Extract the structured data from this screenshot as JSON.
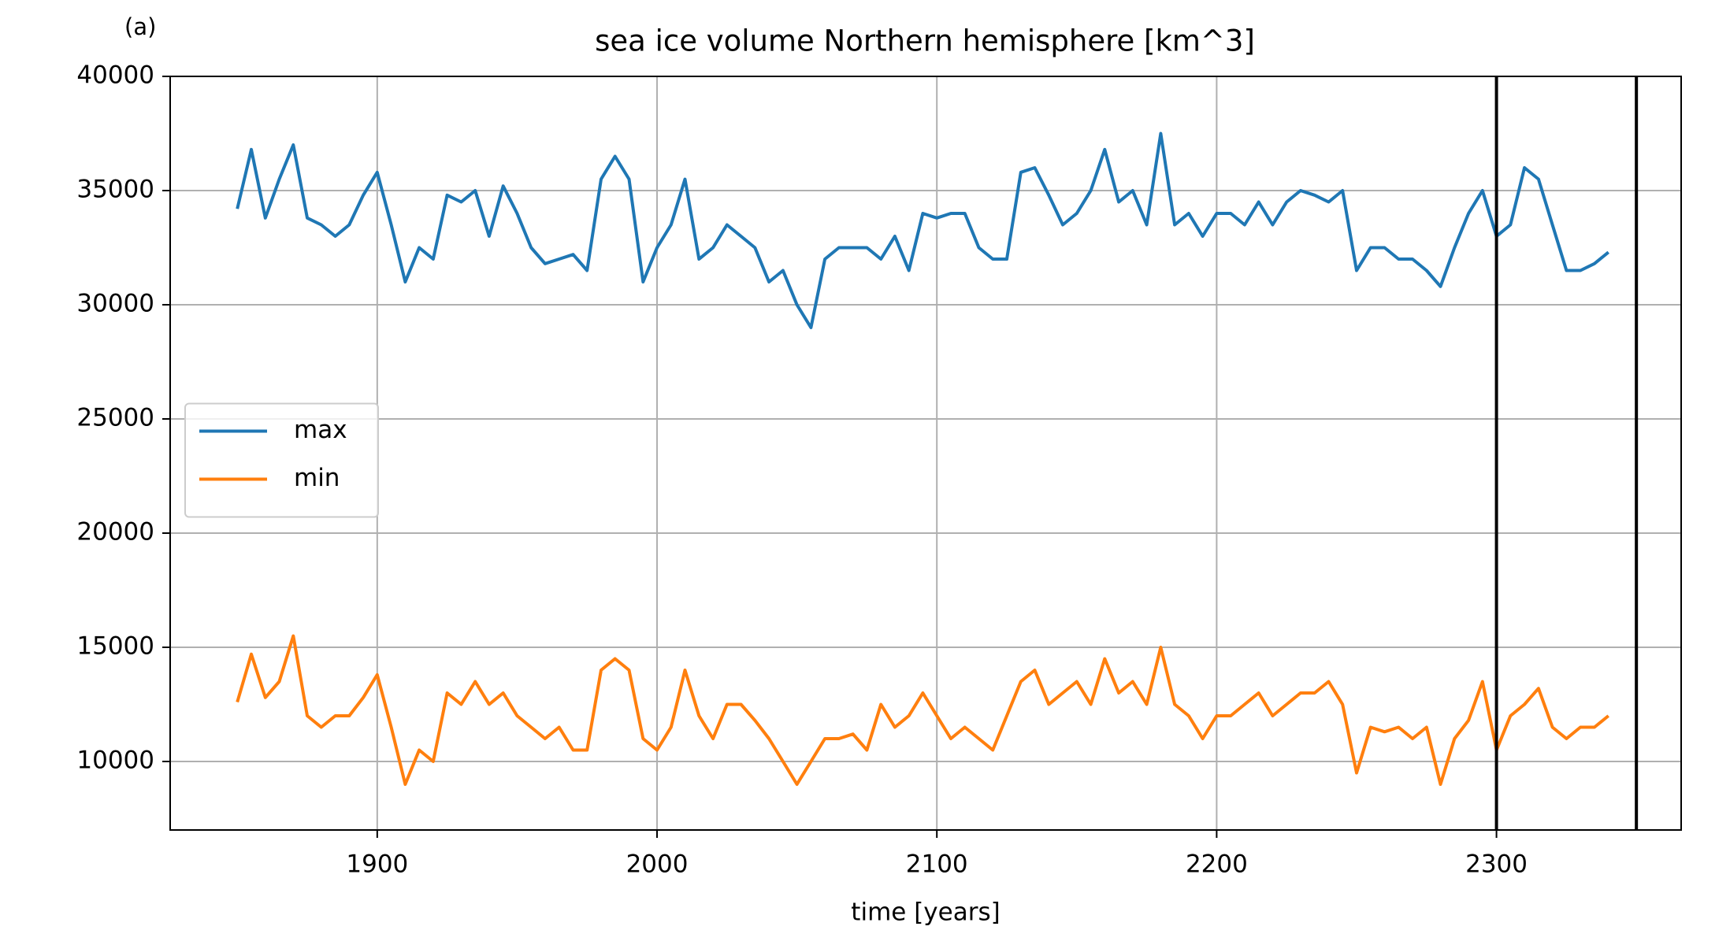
{
  "chart_data": {
    "type": "line",
    "title": "sea ice volume Northern hemisphere [km^3]",
    "annotation": "(a)",
    "xlabel": "time [years]",
    "x": [
      1850,
      1855,
      1860,
      1865,
      1870,
      1875,
      1880,
      1885,
      1890,
      1895,
      1900,
      1905,
      1910,
      1915,
      1920,
      1925,
      1930,
      1935,
      1940,
      1945,
      1950,
      1955,
      1960,
      1965,
      1970,
      1975,
      1980,
      1985,
      1990,
      1995,
      2000,
      2005,
      2010,
      2015,
      2020,
      2025,
      2030,
      2035,
      2040,
      2045,
      2050,
      2055,
      2060,
      2065,
      2070,
      2075,
      2080,
      2085,
      2090,
      2095,
      2100,
      2105,
      2110,
      2115,
      2120,
      2125,
      2130,
      2135,
      2140,
      2145,
      2150,
      2155,
      2160,
      2165,
      2170,
      2175,
      2180,
      2185,
      2190,
      2195,
      2200,
      2205,
      2210,
      2215,
      2220,
      2225,
      2230,
      2235,
      2240,
      2245,
      2250,
      2255,
      2260,
      2265,
      2270,
      2275,
      2280,
      2285,
      2290,
      2295,
      2300,
      2305,
      2310,
      2315,
      2320,
      2325,
      2330,
      2335,
      2340
    ],
    "series": [
      {
        "name": "max",
        "color": "#1f77b4",
        "values": [
          34200,
          36800,
          33800,
          35500,
          37000,
          33800,
          33500,
          33000,
          33500,
          34800,
          35800,
          33500,
          31000,
          32500,
          32000,
          34800,
          34500,
          35000,
          33000,
          35200,
          34000,
          32500,
          31800,
          32000,
          32200,
          31500,
          35500,
          36500,
          35500,
          31000,
          32500,
          33500,
          35500,
          32000,
          32500,
          33500,
          33000,
          32500,
          31000,
          31500,
          30000,
          29000,
          32000,
          32500,
          32500,
          32500,
          32000,
          33000,
          31500,
          34000,
          33800,
          34000,
          34000,
          32500,
          32000,
          32000,
          35800,
          36000,
          34800,
          33500,
          34000,
          35000,
          36800,
          34500,
          35000,
          33500,
          37500,
          33500,
          34000,
          33000,
          34000,
          34000,
          33500,
          34500,
          33500,
          34500,
          35000,
          34800,
          34500,
          35000,
          31500,
          32500,
          32500,
          32000,
          32000,
          31500,
          30800,
          32500,
          34000,
          35000,
          33000,
          33500,
          36000,
          35500,
          33500,
          31500,
          31500,
          31800,
          32300
        ]
      },
      {
        "name": "min",
        "color": "#ff7f0e",
        "values": [
          12600,
          14700,
          12800,
          13500,
          15500,
          12000,
          11500,
          12000,
          12000,
          12800,
          13800,
          11500,
          9000,
          10500,
          10000,
          13000,
          12500,
          13500,
          12500,
          13000,
          12000,
          11500,
          11000,
          11500,
          10500,
          10500,
          14000,
          14500,
          14000,
          11000,
          10500,
          11500,
          14000,
          12000,
          11000,
          12500,
          12500,
          11800,
          11000,
          10000,
          9000,
          10000,
          11000,
          11000,
          11200,
          10500,
          12500,
          11500,
          12000,
          13000,
          12000,
          11000,
          11500,
          11000,
          10500,
          12000,
          13500,
          14000,
          12500,
          13000,
          13500,
          12500,
          14500,
          13000,
          13500,
          12500,
          15000,
          12500,
          12000,
          11000,
          12000,
          12000,
          12500,
          13000,
          12000,
          12500,
          13000,
          13000,
          13500,
          12500,
          9500,
          11500,
          11300,
          11500,
          11000,
          11500,
          9000,
          11000,
          11800,
          13500,
          10500,
          12000,
          12500,
          13200,
          11500,
          11000,
          11500,
          11500,
          12000
        ]
      }
    ],
    "vlines": [
      2300,
      2350
    ],
    "vline_color": "#000000",
    "xlim": [
      1826,
      2366
    ],
    "ylim": [
      7000,
      40000
    ],
    "xticks": [
      1900,
      2000,
      2100,
      2200,
      2300
    ],
    "yticks": [
      10000,
      15000,
      20000,
      25000,
      30000,
      35000,
      40000
    ],
    "grid": true,
    "legend": "center left"
  }
}
